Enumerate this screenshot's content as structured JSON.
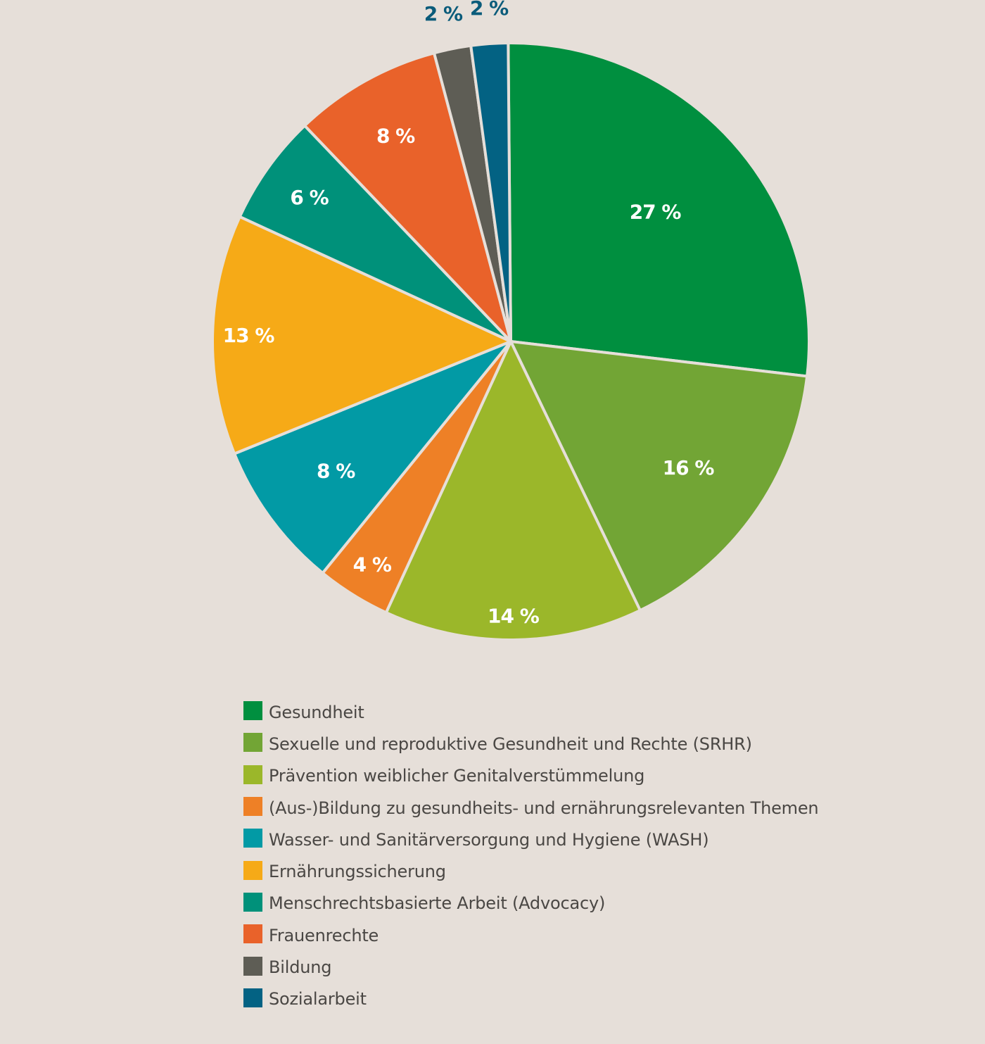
{
  "chart_data": {
    "type": "pie",
    "slices": [
      {
        "name": "Gesundheit",
        "value": 27,
        "label": "27 %",
        "color": "#008f3f"
      },
      {
        "name": "Sexuelle und reproduktive Gesundheit und Rechte (SRHR)",
        "value": 16,
        "label": "16 %",
        "color": "#72a535"
      },
      {
        "name": "Prävention weiblicher Genitalverstümmelung",
        "value": 14,
        "label": "14 %",
        "color": "#9bb72a"
      },
      {
        "name": "(Aus-)Bildung zu gesundheits- und ernährungsrelevanten Themen",
        "value": 4,
        "label": "4 %",
        "color": "#ee8026"
      },
      {
        "name": "Wasser- und Sanitärversorgung und Hygiene (WASH)",
        "value": 8,
        "label": "8 %",
        "color": "#029aa5"
      },
      {
        "name": "Ernährungssicherung",
        "value": 13,
        "label": "13 %",
        "color": "#f6aa17"
      },
      {
        "name": "Menschrechtsbasierte Arbeit (Advocacy)",
        "value": 6,
        "label": "6 %",
        "color": "#00917a"
      },
      {
        "name": "Frauenrechte",
        "value": 8,
        "label": "8 %",
        "color": "#e9622a"
      },
      {
        "name": "Bildung",
        "value": 2,
        "label": "2 %",
        "color": "#5e5d55"
      },
      {
        "name": "Sozialarbeit",
        "value": 2,
        "label": "2 %",
        "color": "#036283"
      }
    ],
    "start_position": "12 o'clock",
    "direction": "clockwise",
    "legend_position": "bottom",
    "slice_border_color": "#e6dfd9",
    "outside_label_color": "#0a5b7a"
  }
}
